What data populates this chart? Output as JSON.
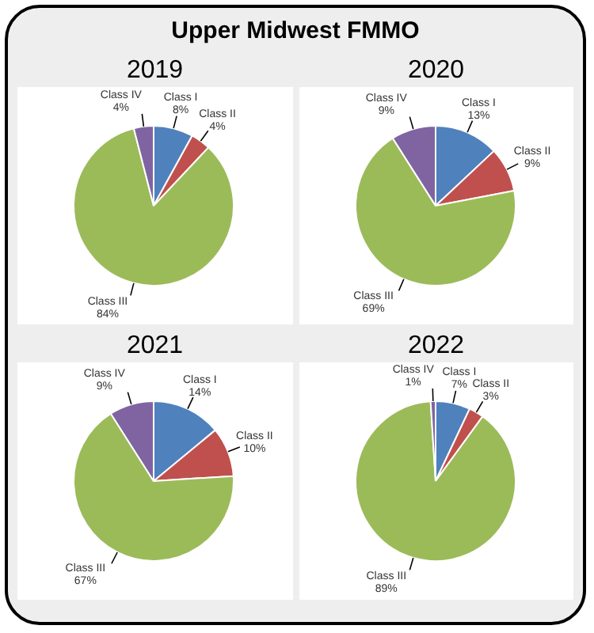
{
  "chart_data": [
    {
      "type": "pie",
      "title": "2019",
      "annotations": [
        "Upper Midwest FMMO"
      ],
      "categories": [
        "Class I",
        "Class II",
        "Class III",
        "Class IV"
      ],
      "values": [
        8,
        4,
        84,
        4
      ],
      "value_labels": [
        "8%",
        "4%",
        "84%",
        "4%"
      ],
      "colors": [
        "#4f81bd",
        "#c0504d",
        "#9bbb59",
        "#8064a2"
      ]
    },
    {
      "type": "pie",
      "title": "2020",
      "categories": [
        "Class I",
        "Class II",
        "Class III",
        "Class IV"
      ],
      "values": [
        13,
        9,
        69,
        9
      ],
      "value_labels": [
        "13%",
        "9%",
        "69%",
        "9%"
      ],
      "colors": [
        "#4f81bd",
        "#c0504d",
        "#9bbb59",
        "#8064a2"
      ]
    },
    {
      "type": "pie",
      "title": "2021",
      "categories": [
        "Class I",
        "Class II",
        "Class III",
        "Class IV"
      ],
      "values": [
        14,
        10,
        67,
        9
      ],
      "value_labels": [
        "14%",
        "10%",
        "67%",
        "9%"
      ],
      "colors": [
        "#4f81bd",
        "#c0504d",
        "#9bbb59",
        "#8064a2"
      ]
    },
    {
      "type": "pie",
      "title": "2022",
      "categories": [
        "Class I",
        "Class II",
        "Class III",
        "Class IV"
      ],
      "values": [
        7,
        3,
        89,
        1
      ],
      "value_labels": [
        "7%",
        "3%",
        "89%",
        "1%"
      ],
      "colors": [
        "#4f81bd",
        "#c0504d",
        "#9bbb59",
        "#8064a2"
      ]
    }
  ]
}
